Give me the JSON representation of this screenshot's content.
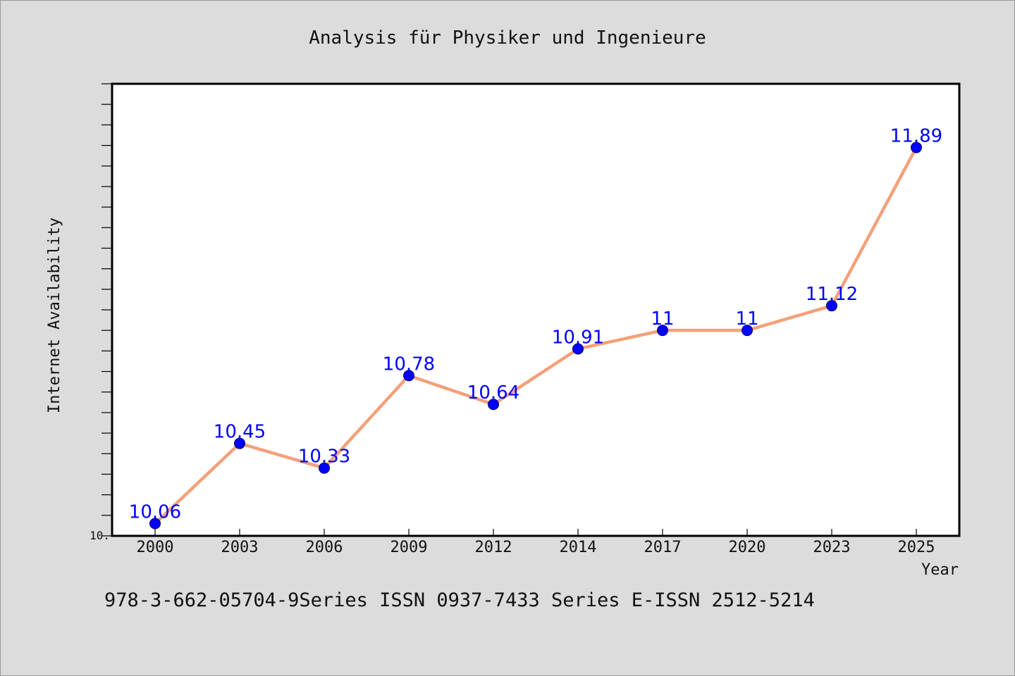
{
  "chart_data": {
    "type": "line",
    "title": "Analysis für Physiker und Ingenieure",
    "xlabel": "Year",
    "ylabel": "Internet Availability",
    "categories": [
      "2000",
      "2003",
      "2006",
      "2009",
      "2012",
      "2014",
      "2017",
      "2020",
      "2023",
      "2025"
    ],
    "series": [
      {
        "values": [
          10.06,
          10.45,
          10.33,
          10.78,
          10.64,
          10.91,
          11,
          11,
          11.12,
          11.89
        ],
        "labels": [
          "10.06",
          "10.45",
          "10.33",
          "10.78",
          "10.64",
          "10.91",
          "11",
          "11",
          "11.12",
          "11.89"
        ],
        "line_color": "#f4a07a",
        "marker_color": "#0000ff"
      }
    ],
    "ylim": [
      10.0,
      12.2
    ],
    "yticks": [
      {
        "value": 10.0,
        "label": "10."
      }
    ],
    "y_minor_step": 0.1,
    "grid": false,
    "legend": "none",
    "label_color": "#0000ff"
  },
  "footer": {
    "text": "978-3-662-05704-9Series ISSN 0937-7433 Series E-ISSN 2512-5214"
  }
}
